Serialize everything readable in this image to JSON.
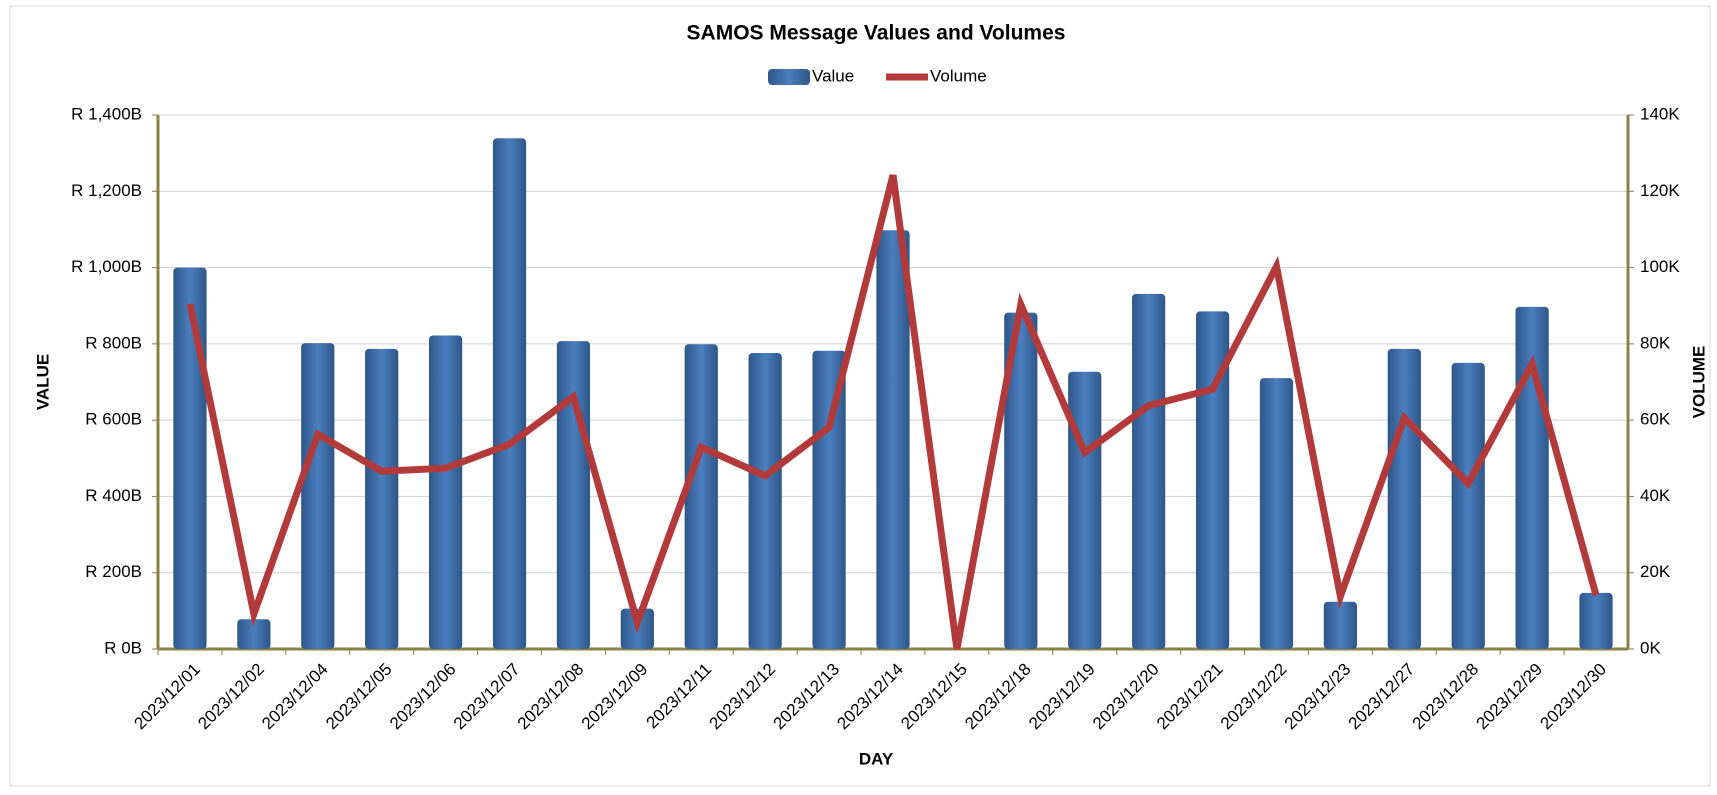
{
  "chart_data": {
    "type": "bar_line",
    "title": "SAMOS Message Values and Volumes",
    "x_label": "DAY",
    "y_label": "VALUE",
    "y2_label": "VOLUME",
    "categories": [
      "2023/12/01",
      "2023/12/02",
      "2023/12/04",
      "2023/12/05",
      "2023/12/06",
      "2023/12/07",
      "2023/12/08",
      "2023/12/09",
      "2023/12/11",
      "2023/12/12",
      "2023/12/13",
      "2023/12/14",
      "2023/12/15",
      "2023/12/18",
      "2023/12/19",
      "2023/12/20",
      "2023/12/21",
      "2023/12/22",
      "2023/12/23",
      "2023/12/27",
      "2023/12/28",
      "2023/12/29",
      "2023/12/30"
    ],
    "series": [
      {
        "name": "Value",
        "type": "bar",
        "color": "#3f6fae",
        "values": [
          1000,
          78,
          802,
          787,
          822,
          1339,
          807,
          106,
          799,
          776,
          782,
          1098,
          0,
          882,
          727,
          931,
          885,
          710,
          124,
          787,
          750,
          897,
          147
        ]
      },
      {
        "name": "Volume",
        "type": "line",
        "axis": "y2",
        "color": "#b33a3a",
        "values": [
          90.5,
          9.2,
          56.3,
          46.6,
          47.4,
          53.7,
          66.1,
          6.9,
          52.9,
          45.4,
          58.1,
          124.2,
          0,
          90.3,
          51.5,
          63.8,
          68.1,
          100.3,
          13.8,
          60.6,
          43.4,
          74.7,
          14.1
        ]
      }
    ],
    "ylim": [
      0,
      1400
    ],
    "yticks": [
      {
        "value": 0,
        "label": "R 0B"
      },
      {
        "value": 200,
        "label": "R 200B"
      },
      {
        "value": 400,
        "label": "R 400B"
      },
      {
        "value": 600,
        "label": "R 600B"
      },
      {
        "value": 800,
        "label": "R 800B"
      },
      {
        "value": 1000,
        "label": "R 1,000B"
      },
      {
        "value": 1200,
        "label": "R 1,200B"
      },
      {
        "value": 1400,
        "label": "R 1,400B"
      }
    ],
    "y2lim": [
      0,
      140
    ],
    "y2ticks": [
      {
        "value": 0,
        "label": "0K"
      },
      {
        "value": 20,
        "label": "20K"
      },
      {
        "value": 40,
        "label": "40K"
      },
      {
        "value": 60,
        "label": "60K"
      },
      {
        "value": 80,
        "label": "80K"
      },
      {
        "value": 100,
        "label": "100K"
      },
      {
        "value": 120,
        "label": "120K"
      },
      {
        "value": 140,
        "label": "140K"
      }
    ],
    "grid": true,
    "legend": "top"
  }
}
